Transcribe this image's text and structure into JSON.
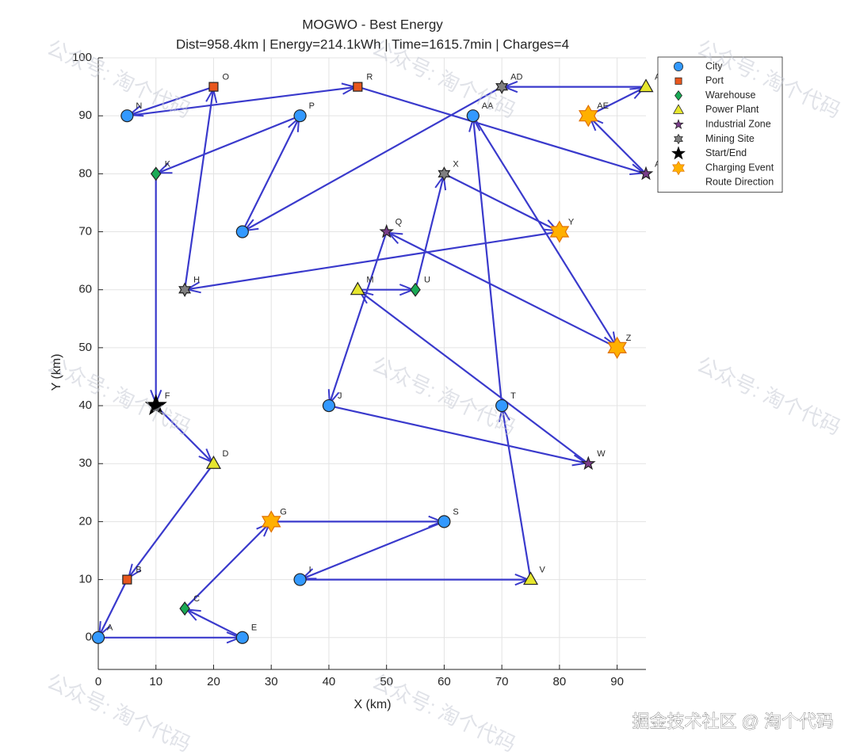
{
  "chart_data": {
    "type": "scatter",
    "title": "MOGWO - Best Energy",
    "subtitle": "Dist=958.4km | Energy=214.1kWh | Time=1615.7min | Charges=4",
    "xlabel": "X (km)",
    "ylabel": "Y (km)",
    "xlim": [
      0,
      95
    ],
    "ylim": [
      -5.5,
      100
    ],
    "xticks": [
      0,
      10,
      20,
      30,
      40,
      50,
      60,
      70,
      80,
      90
    ],
    "yticks": [
      0,
      10,
      20,
      30,
      40,
      50,
      60,
      70,
      80,
      90,
      100
    ],
    "grid": true,
    "legend_position": "northeast",
    "watermark": "公众号: 淘个代码",
    "footer_watermark": "掘金技术社区 @ 淘个代码",
    "series": [
      {
        "name": "City",
        "color": "#3399ff",
        "marker": "circle",
        "x": [
          0,
          25,
          35,
          40,
          25,
          5,
          35,
          60,
          70,
          65
        ],
        "values": [
          0,
          0,
          10,
          40,
          70,
          90,
          90,
          20,
          40,
          90
        ],
        "labels": [
          "A",
          "E",
          "I",
          "J",
          null,
          "N",
          "P",
          "S",
          "T",
          "AA"
        ]
      },
      {
        "name": "Port",
        "color": "#e8571e",
        "marker": "square",
        "x": [
          5,
          20,
          45
        ],
        "values": [
          10,
          95,
          95
        ],
        "labels": [
          "B",
          "O",
          "R"
        ]
      },
      {
        "name": "Warehouse",
        "color": "#1aaa55",
        "marker": "diamond",
        "x": [
          15,
          10,
          55
        ],
        "values": [
          5,
          80,
          60
        ],
        "labels": [
          "C",
          "K",
          "U"
        ]
      },
      {
        "name": "Power Plant",
        "color": "#e6e62e",
        "marker": "triangle",
        "x": [
          20,
          45,
          75,
          95
        ],
        "values": [
          30,
          60,
          10,
          95
        ],
        "labels": [
          "D",
          "M",
          "V",
          "A"
        ]
      },
      {
        "name": "Industrial Zone",
        "color": "#7a3d8a",
        "marker": "star",
        "x": [
          50,
          85,
          95
        ],
        "values": [
          70,
          30,
          80
        ],
        "labels": [
          "Q",
          "W",
          "A"
        ]
      },
      {
        "name": "Mining Site",
        "color": "#808080",
        "marker": "hexagram",
        "x": [
          15,
          60,
          70
        ],
        "values": [
          60,
          80,
          95
        ],
        "labels": [
          "H",
          "X",
          "AD"
        ]
      },
      {
        "name": "Start/End",
        "color": "#000000",
        "marker": "bigstar",
        "x": [
          10
        ],
        "values": [
          40
        ],
        "labels": [
          "F"
        ]
      },
      {
        "name": "Charging Event",
        "color": "#ffb000",
        "marker": "bighexagram",
        "x": [
          30,
          80,
          90,
          85
        ],
        "values": [
          20,
          70,
          50,
          90
        ],
        "labels": [
          "G",
          "Y",
          "Z",
          "AE"
        ]
      },
      {
        "name": "Route Direction",
        "color": "#3a3acc",
        "marker": "route",
        "x": [
          10,
          20,
          5,
          0,
          25,
          15,
          30,
          60,
          35,
          75,
          70,
          65,
          90,
          50,
          40,
          85,
          45,
          55,
          60,
          80,
          15,
          20,
          5,
          45,
          95,
          85,
          95,
          70,
          25,
          35,
          10,
          10
        ],
        "values": [
          40,
          30,
          10,
          0,
          0,
          5,
          20,
          20,
          10,
          10,
          40,
          90,
          50,
          70,
          40,
          30,
          60,
          60,
          80,
          70,
          60,
          95,
          90,
          95,
          80,
          90,
          95,
          95,
          70,
          90,
          80,
          40
        ]
      }
    ]
  }
}
